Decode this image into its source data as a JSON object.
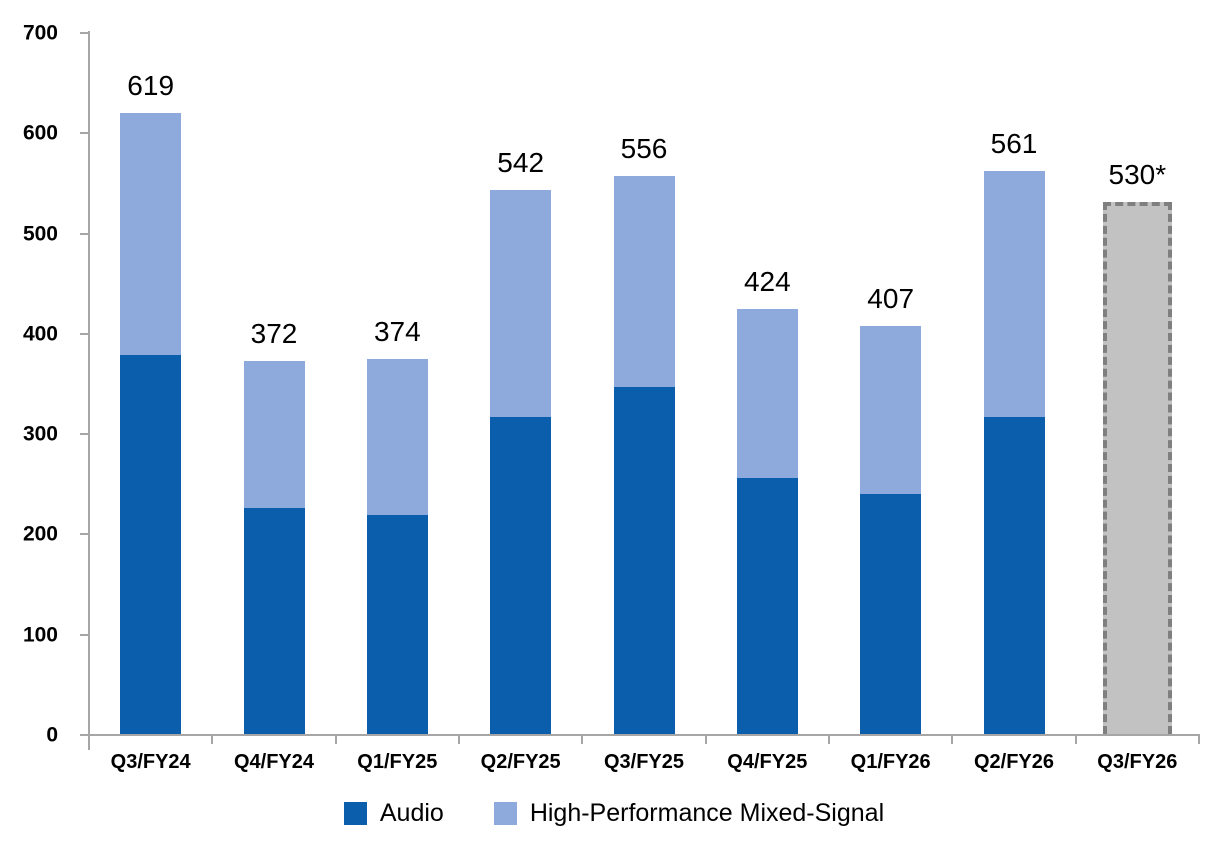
{
  "chart_data": {
    "type": "bar",
    "stacked": true,
    "title": "",
    "xlabel": "",
    "ylabel": "",
    "ylim": [
      0,
      700
    ],
    "ytick_step": 100,
    "grid": false,
    "legend_position": "bottom",
    "axis_color": "#a6a6a6",
    "text_color": "#000000",
    "categories": [
      "Q3/FY24",
      "Q4/FY24",
      "Q1/FY25",
      "Q2/FY25",
      "Q3/FY25",
      "Q4/FY25",
      "Q1/FY26",
      "Q2/FY26",
      "Q3/FY26"
    ],
    "series": [
      {
        "name": "Audio",
        "color": "#0b5eac",
        "values": [
          378,
          225,
          218,
          316,
          346,
          255,
          239,
          316,
          null
        ]
      },
      {
        "name": "High-Performance Mixed-Signal",
        "color": "#8ea9db",
        "values": [
          241,
          147,
          156,
          226,
          210,
          169,
          168,
          245,
          null
        ]
      }
    ],
    "totals": [
      619,
      372,
      374,
      542,
      556,
      424,
      407,
      561,
      530
    ],
    "total_labels": [
      "619",
      "372",
      "374",
      "542",
      "556",
      "424",
      "407",
      "561",
      "530*"
    ],
    "forecast": {
      "category": "Q3/FY26",
      "index": 8,
      "value": 530,
      "label": "530*",
      "fill_color": "#c2c2c2",
      "border_color": "#7f7f7f",
      "border_style": "dashed"
    }
  }
}
